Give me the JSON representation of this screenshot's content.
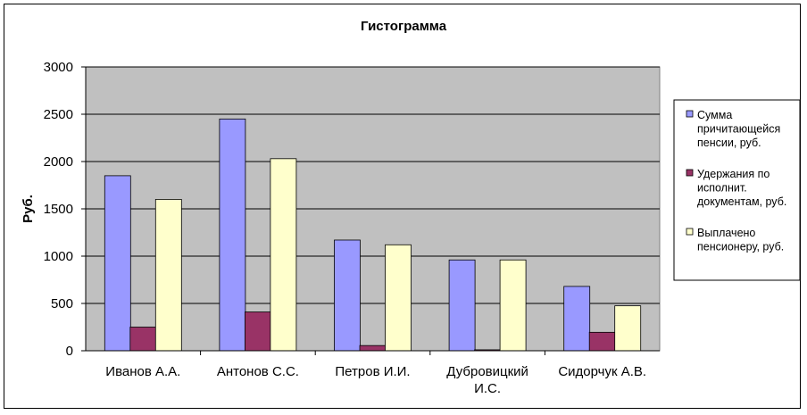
{
  "chart_data": {
    "type": "bar",
    "title": "Гистограмма",
    "xlabel": "",
    "ylabel": "Руб.",
    "ylim": [
      0,
      3000
    ],
    "yticks": [
      0,
      500,
      1000,
      1500,
      2000,
      2500,
      3000
    ],
    "grid": true,
    "legend_position": "right",
    "plot_background": "#C0C0C0",
    "categories": [
      [
        "Иванов А.А."
      ],
      [
        "Антонов С.С."
      ],
      [
        "Петров И.И."
      ],
      [
        "Дубровицкий",
        "И.С."
      ],
      [
        "Сидорчук А.В."
      ]
    ],
    "series": [
      {
        "name": [
          "Сумма",
          "причитающейся",
          "пенсии, руб."
        ],
        "color": "#9999FF",
        "values": [
          1850,
          2450,
          1170,
          960,
          680
        ]
      },
      {
        "name": [
          "Удержания по",
          "исполнит.",
          "документам, руб."
        ],
        "color": "#993366",
        "values": [
          250,
          410,
          55,
          10,
          195
        ]
      },
      {
        "name": [
          "Выплачено",
          "пенсионеру, руб."
        ],
        "color": "#FFFFCC",
        "values": [
          1600,
          2030,
          1120,
          960,
          475
        ]
      }
    ]
  }
}
